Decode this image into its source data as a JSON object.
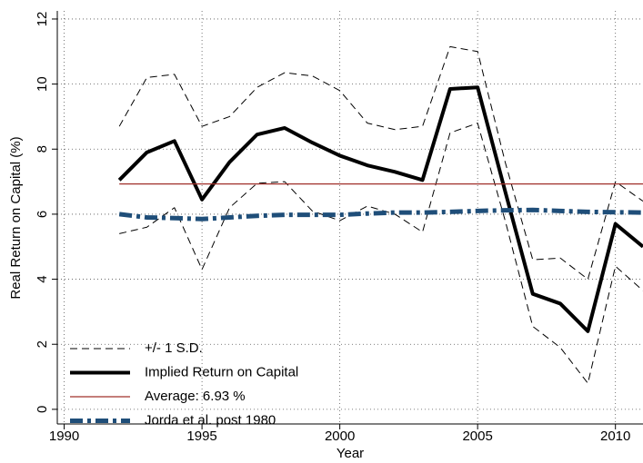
{
  "chart_data": {
    "type": "line",
    "x_label": "Year",
    "y_label": "Real Return on Capital (%)",
    "x": [
      1992,
      1993,
      1994,
      1995,
      1996,
      1997,
      1998,
      1999,
      2000,
      2001,
      2002,
      2003,
      2004,
      2005,
      2006,
      2007,
      2008,
      2009,
      2010,
      2011
    ],
    "series": [
      {
        "name": "+/- 1 S.D.",
        "color": "#000000",
        "style": "band",
        "upper": [
          8.7,
          10.2,
          10.3,
          8.7,
          9.0,
          9.9,
          10.35,
          10.25,
          9.8,
          8.8,
          8.6,
          8.7,
          11.15,
          11.0,
          7.6,
          4.6,
          4.65,
          4.0,
          7.0,
          6.4
        ],
        "lower": [
          5.4,
          5.6,
          6.2,
          4.3,
          6.2,
          6.95,
          7.0,
          6.1,
          5.8,
          6.25,
          6.0,
          5.45,
          8.5,
          8.8,
          5.8,
          2.55,
          1.9,
          0.8,
          4.4,
          3.65
        ]
      },
      {
        "name": "Implied Return on Capital",
        "color": "#000000",
        "style": "solid",
        "values": [
          7.05,
          7.9,
          8.25,
          6.45,
          7.6,
          8.45,
          8.65,
          8.2,
          7.8,
          7.5,
          7.3,
          7.05,
          9.85,
          9.9,
          6.7,
          3.55,
          3.25,
          2.4,
          5.7,
          5.0
        ]
      },
      {
        "name": "Average: 6.93 %",
        "color": "#a0302a",
        "style": "hline",
        "value": 6.93
      },
      {
        "name": "Jorda et al. post 1980",
        "color": "#1f4e79",
        "style": "dashdot",
        "values": [
          6.0,
          5.9,
          5.88,
          5.85,
          5.9,
          5.95,
          5.98,
          5.98,
          5.98,
          6.02,
          6.05,
          6.05,
          6.07,
          6.1,
          6.12,
          6.13,
          6.1,
          6.07,
          6.06,
          6.05
        ]
      }
    ],
    "xlim": [
      1989.75,
      2011
    ],
    "ylim": [
      -0.45,
      12.25
    ],
    "xticks": [
      1990,
      1995,
      2000,
      2005,
      2010
    ],
    "yticks": [
      0,
      2,
      4,
      6,
      8,
      10,
      12
    ],
    "grid": true,
    "legend": "lower left"
  }
}
